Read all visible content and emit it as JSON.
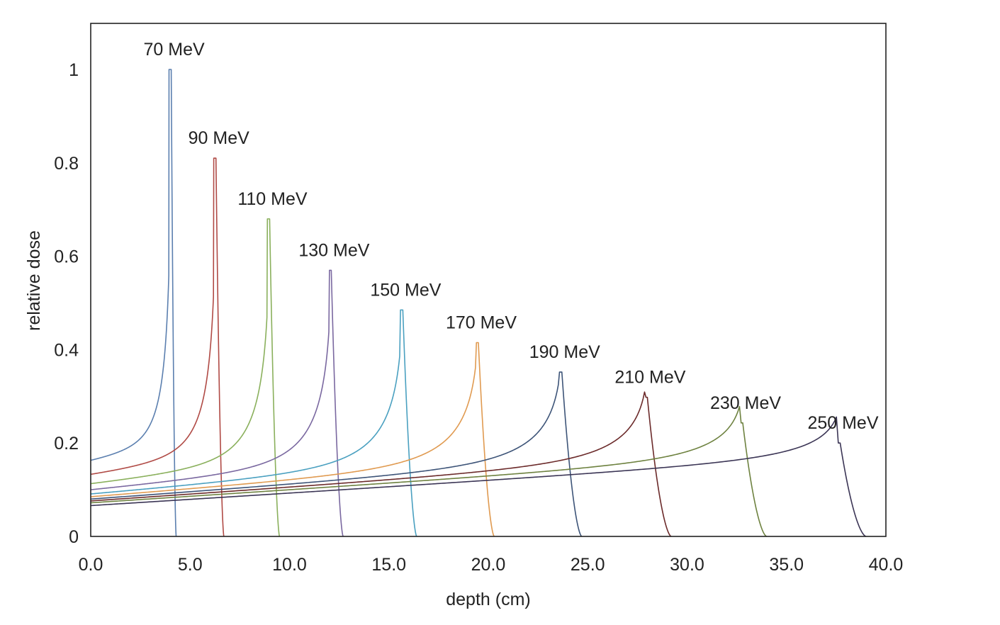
{
  "chart_data": {
    "type": "line",
    "title": "",
    "xlabel": "depth (cm)",
    "ylabel": "relative dose",
    "xlim": [
      0,
      40
    ],
    "ylim": [
      0,
      1.1
    ],
    "x_ticks": [
      "0.0",
      "5.0",
      "10.0",
      "15.0",
      "20.0",
      "25.0",
      "30.0",
      "35.0",
      "40.0"
    ],
    "y_ticks": [
      "0",
      "0.2",
      "0.4",
      "0.6",
      "0.8",
      "1"
    ],
    "grid": false,
    "legend": "none",
    "series": [
      {
        "name": "70 MeV",
        "color": "#5b7faf",
        "entrance": 0.163,
        "peak_depth": 4.05,
        "peak_dose": 1.0,
        "range_end": 4.3
      },
      {
        "name": "90 MeV",
        "color": "#b04a45",
        "entrance": 0.133,
        "peak_depth": 6.3,
        "peak_dose": 0.81,
        "range_end": 6.7
      },
      {
        "name": "110 MeV",
        "color": "#8ab05c",
        "entrance": 0.113,
        "peak_depth": 9.0,
        "peak_dose": 0.68,
        "range_end": 9.5
      },
      {
        "name": "130 MeV",
        "color": "#7a68a0",
        "entrance": 0.1,
        "peak_depth": 12.1,
        "peak_dose": 0.57,
        "range_end": 12.7
      },
      {
        "name": "150 MeV",
        "color": "#4aa0c0",
        "entrance": 0.091,
        "peak_depth": 15.7,
        "peak_dose": 0.485,
        "range_end": 16.4
      },
      {
        "name": "170 MeV",
        "color": "#e09a50",
        "entrance": 0.085,
        "peak_depth": 19.5,
        "peak_dose": 0.415,
        "range_end": 20.3
      },
      {
        "name": "190 MeV",
        "color": "#3d5478",
        "entrance": 0.08,
        "peak_depth": 23.7,
        "peak_dose": 0.352,
        "range_end": 24.7
      },
      {
        "name": "210 MeV",
        "color": "#6b2a2a",
        "entrance": 0.076,
        "peak_depth": 28.0,
        "peak_dose": 0.298,
        "range_end": 29.2
      },
      {
        "name": "230 MeV",
        "color": "#6e8240",
        "entrance": 0.072,
        "peak_depth": 32.8,
        "peak_dose": 0.243,
        "range_end": 34.0
      },
      {
        "name": "250 MeV",
        "color": "#3b3555",
        "entrance": 0.066,
        "peak_depth": 37.7,
        "peak_dose": 0.2,
        "range_end": 39.0
      }
    ]
  }
}
